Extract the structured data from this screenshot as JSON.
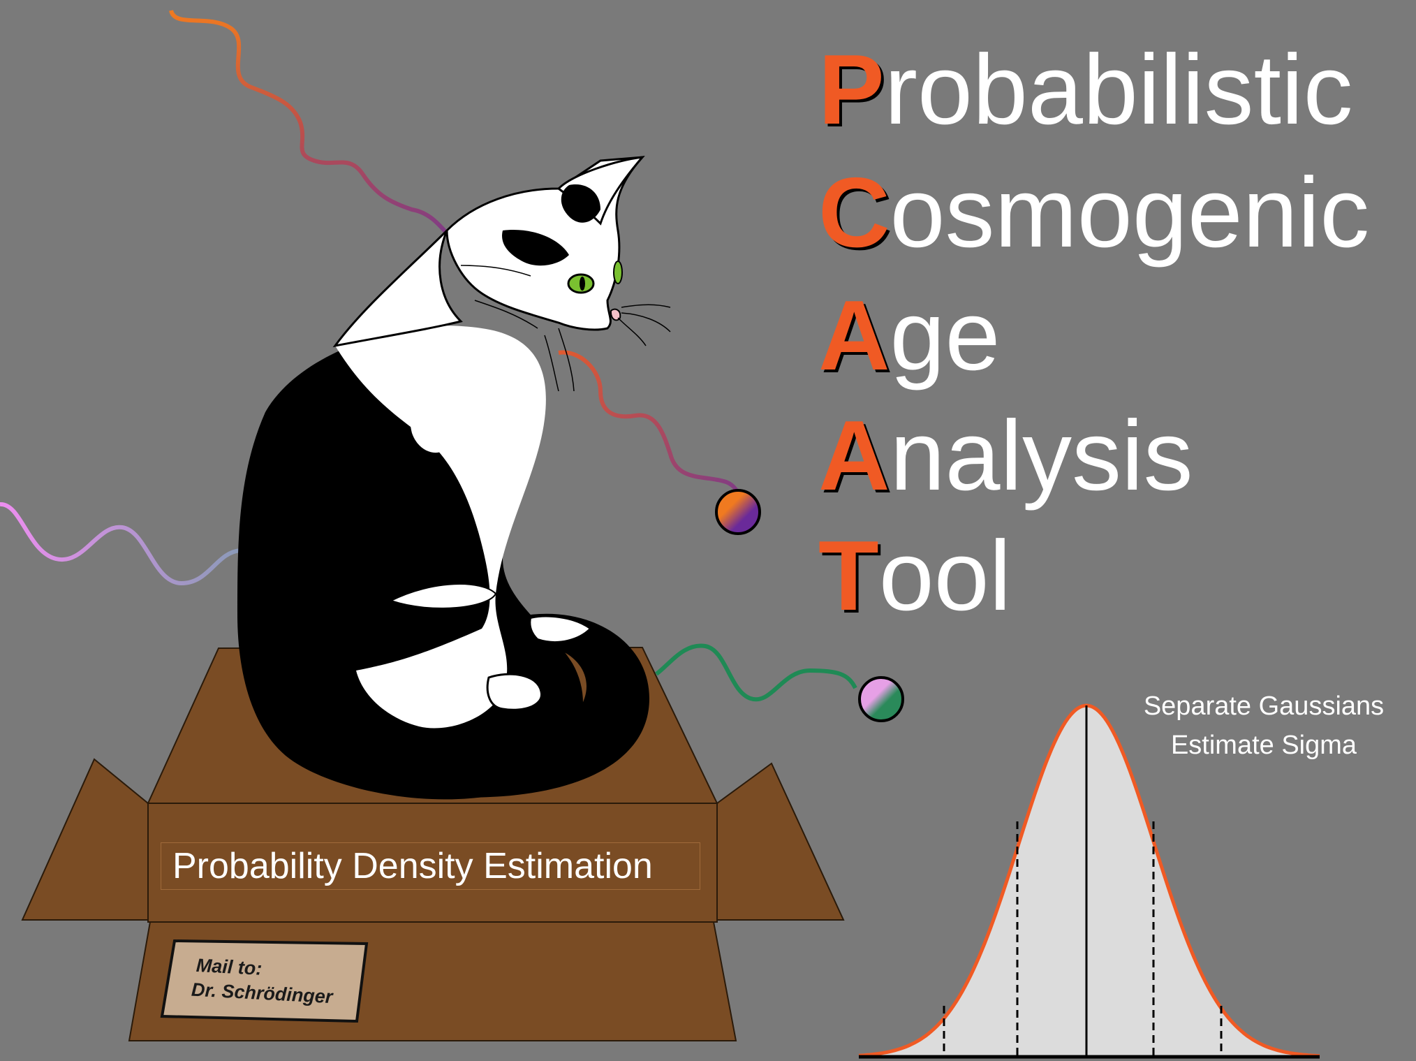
{
  "title": {
    "lines": [
      {
        "initial": "P",
        "rest": "robabilistic"
      },
      {
        "initial": "C",
        "rest": "osmogenic"
      },
      {
        "initial": "A",
        "rest": "ge"
      },
      {
        "initial": "A",
        "rest": "nalysis"
      },
      {
        "initial": "T",
        "rest": "ool"
      }
    ]
  },
  "gaussian": {
    "label_line1": "Separate Gaussians",
    "label_line2": "Estimate Sigma"
  },
  "box": {
    "label": "Probability Density Estimation",
    "mail_line1": "Mail to:",
    "mail_line2": "Dr. Schrödinger"
  },
  "colors": {
    "background": "#7a7a7a",
    "accent": "#f05a24",
    "box": "#7a4c24",
    "box_edge": "#2a1a0a",
    "mail_label": "#c7ac90",
    "curve_fill": "#dcdcdc",
    "curve_stroke": "#f05a24"
  }
}
